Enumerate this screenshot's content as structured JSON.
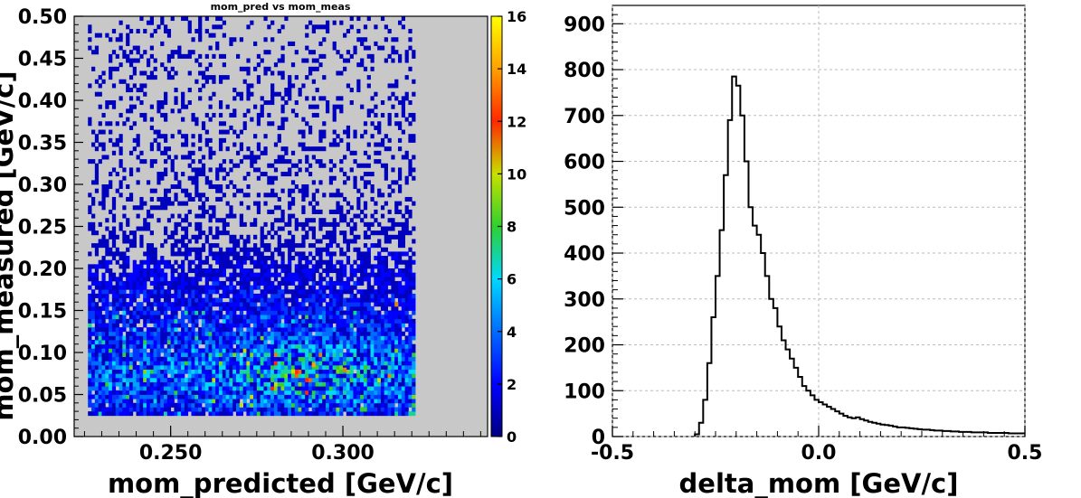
{
  "chart_data": [
    {
      "type": "heatmap",
      "title": "mom_pred vs mom_meas",
      "xlabel": "mom_predicted [GeV/c]",
      "ylabel": "mom_measured [GeV/c]",
      "xlim": [
        0.222,
        0.342
      ],
      "ylim": [
        0.0,
        0.5
      ],
      "x_ticks": [
        "0.250",
        "0.300"
      ],
      "y_ticks": [
        "0.00",
        "0.05",
        "0.10",
        "0.15",
        "0.20",
        "0.25",
        "0.30",
        "0.35",
        "0.40",
        "0.45",
        "0.50"
      ],
      "colorbar": {
        "min": 0,
        "max": 16,
        "ticks": [
          "0",
          "2",
          "4",
          "6",
          "8",
          "10",
          "12",
          "14",
          "16"
        ]
      },
      "data_region": {
        "x": [
          0.226,
          0.321
        ],
        "y": [
          0.025,
          0.5
        ]
      },
      "background": "#c8c8c8",
      "hotspots": [
        {
          "x": 0.291,
          "y": 0.088,
          "value": 14
        },
        {
          "x": 0.285,
          "y": 0.08,
          "value": 10
        },
        {
          "x": 0.3,
          "y": 0.082,
          "value": 11
        },
        {
          "x": 0.27,
          "y": 0.04,
          "value": 10
        },
        {
          "x": 0.315,
          "y": 0.16,
          "value": 11
        }
      ]
    },
    {
      "type": "line",
      "title": "",
      "xlabel": "delta_mom [GeV/c]",
      "ylabel": "",
      "xlim": [
        -0.5,
        0.5
      ],
      "ylim": [
        0,
        940
      ],
      "x_ticks": [
        "-0.5",
        "0.0",
        "0.5"
      ],
      "y_ticks": [
        "0",
        "100",
        "200",
        "300",
        "400",
        "500",
        "600",
        "700",
        "800",
        "900"
      ],
      "grid": true,
      "bin_width": 0.01,
      "bin_start": -0.3,
      "values": [
        5,
        30,
        80,
        160,
        260,
        350,
        450,
        570,
        690,
        785,
        765,
        700,
        600,
        500,
        460,
        440,
        400,
        350,
        300,
        280,
        240,
        210,
        190,
        170,
        150,
        130,
        110,
        100,
        90,
        80,
        75,
        70,
        65,
        60,
        55,
        50,
        45,
        42,
        40,
        42,
        38,
        35,
        32,
        30,
        28,
        26,
        25,
        24,
        22,
        20,
        20,
        19,
        18,
        17,
        16,
        15,
        15,
        14,
        13,
        13,
        12,
        12,
        11,
        11,
        10,
        10,
        10,
        9,
        9,
        9,
        9,
        8,
        8,
        8,
        8,
        8,
        7,
        7,
        7,
        7
      ]
    }
  ]
}
